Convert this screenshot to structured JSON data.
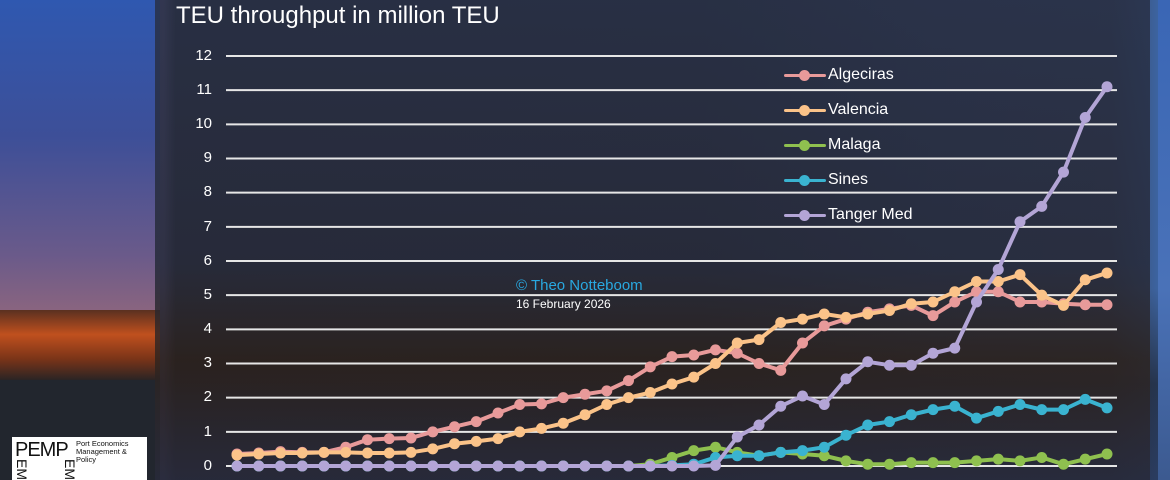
{
  "chart_data": {
    "type": "line",
    "title": "TEU throughput in million TEU",
    "xlabel": "",
    "ylabel": "",
    "ylim": [
      0,
      12
    ],
    "yticks": [
      0,
      1,
      2,
      3,
      4,
      5,
      6,
      7,
      8,
      9,
      10,
      11,
      12
    ],
    "grid": true,
    "legend_position": "upper right",
    "n_points": 41,
    "series": [
      {
        "name": "Algeciras",
        "color": "#e89a9a",
        "values": [
          0.35,
          0.38,
          0.42,
          0.4,
          0.4,
          0.55,
          0.77,
          0.8,
          0.82,
          1.0,
          1.15,
          1.3,
          1.55,
          1.8,
          1.82,
          2.0,
          2.1,
          2.2,
          2.5,
          2.9,
          3.2,
          3.25,
          3.4,
          3.3,
          3.0,
          2.8,
          3.6,
          4.1,
          4.3,
          4.5,
          4.6,
          4.7,
          4.4,
          4.8,
          5.1,
          5.1,
          4.8,
          4.8,
          4.75,
          4.72,
          4.72
        ]
      },
      {
        "name": "Valencia",
        "color": "#fbc389",
        "values": [
          0.32,
          0.35,
          0.38,
          0.38,
          0.4,
          0.4,
          0.38,
          0.38,
          0.4,
          0.5,
          0.65,
          0.72,
          0.8,
          1.0,
          1.1,
          1.25,
          1.5,
          1.8,
          2.0,
          2.15,
          2.4,
          2.6,
          3.0,
          3.6,
          3.7,
          4.2,
          4.3,
          4.45,
          4.35,
          4.45,
          4.55,
          4.75,
          4.8,
          5.1,
          5.4,
          5.4,
          5.6,
          5.0,
          4.7,
          5.45,
          5.65
        ]
      },
      {
        "name": "Malaga",
        "color": "#8fc04f",
        "values": [
          0,
          0,
          0,
          0,
          0,
          0,
          0,
          0,
          0,
          0,
          0,
          0,
          0,
          0,
          0,
          0,
          0,
          0,
          0,
          0.05,
          0.25,
          0.45,
          0.55,
          0.4,
          0.3,
          0.4,
          0.35,
          0.3,
          0.15,
          0.05,
          0.05,
          0.1,
          0.1,
          0.1,
          0.15,
          0.2,
          0.15,
          0.25,
          0.05,
          0.2,
          0.35
        ]
      },
      {
        "name": "Sines",
        "color": "#3ab3d0",
        "values": [
          0,
          0,
          0,
          0,
          0,
          0,
          0,
          0,
          0,
          0,
          0,
          0,
          0,
          0,
          0,
          0,
          0,
          0,
          0,
          0,
          0.02,
          0.05,
          0.25,
          0.3,
          0.3,
          0.4,
          0.45,
          0.55,
          0.9,
          1.2,
          1.3,
          1.5,
          1.65,
          1.75,
          1.4,
          1.6,
          1.8,
          1.65,
          1.65,
          1.95,
          1.7
        ]
      },
      {
        "name": "Tanger Med",
        "color": "#b3a5d6",
        "values": [
          0,
          0,
          0,
          0,
          0,
          0,
          0,
          0,
          0,
          0,
          0,
          0,
          0,
          0,
          0,
          0,
          0,
          0,
          0,
          0,
          0,
          0,
          0.02,
          0.85,
          1.2,
          1.75,
          2.05,
          1.8,
          2.55,
          3.05,
          2.95,
          2.95,
          3.3,
          3.45,
          4.8,
          5.75,
          7.15,
          7.6,
          8.6,
          10.2,
          11.1
        ]
      }
    ]
  },
  "header": {
    "title": "TEU throughput in million TEU"
  },
  "axis": {
    "y_labels": [
      "12",
      "11",
      "10",
      "9",
      "8",
      "7",
      "6",
      "5",
      "4",
      "3",
      "2",
      "1",
      "0"
    ]
  },
  "legend": {
    "items": [
      {
        "label": "Algeciras",
        "color": "#e89a9a"
      },
      {
        "label": "Valencia",
        "color": "#fbc389"
      },
      {
        "label": "Malaga",
        "color": "#8fc04f"
      },
      {
        "label": "Sines",
        "color": "#3ab3d0"
      },
      {
        "label": "Tanger Med",
        "color": "#b3a5d6"
      }
    ]
  },
  "annotations": {
    "copyright": "© Theo Notteboom",
    "date": "16 February 2026"
  },
  "logo": {
    "abbr": "PEMP",
    "line1": "Port Economics",
    "line2": "Management & Policy",
    "vert": "EM"
  }
}
